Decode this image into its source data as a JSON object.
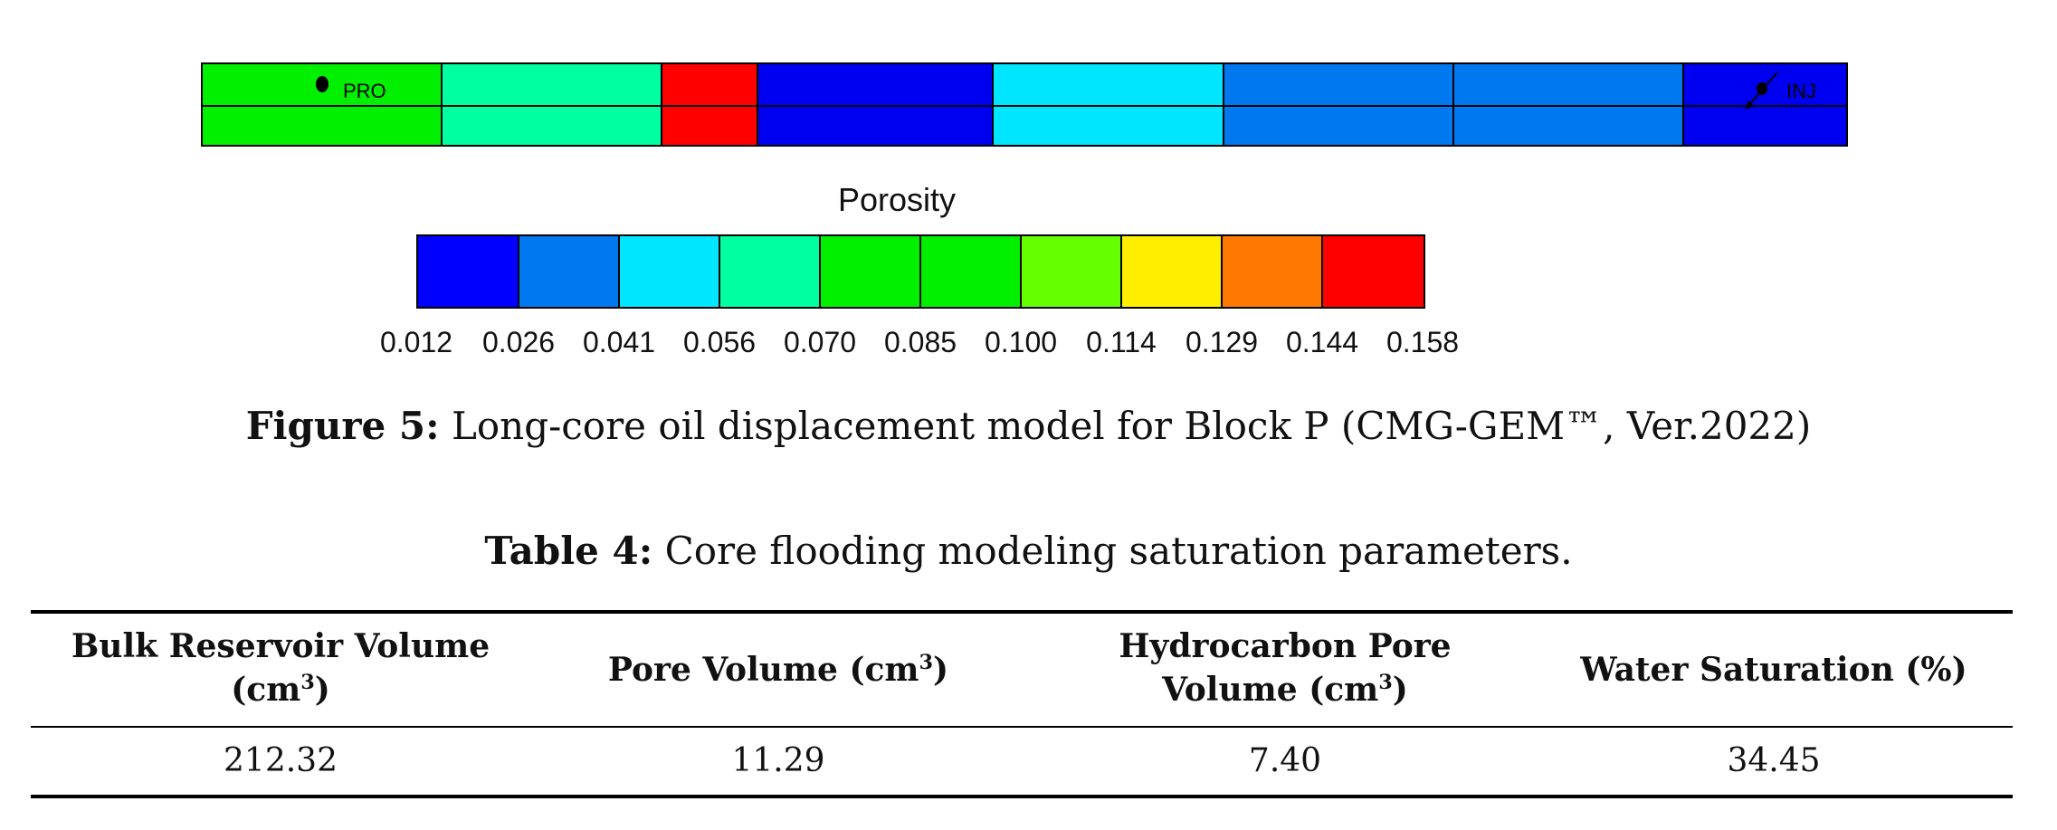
{
  "model": {
    "wells": {
      "producer": "PRO",
      "injector": "INJ"
    },
    "blocks": [
      {
        "color": "#00f000"
      },
      {
        "color": "#00ffa0"
      },
      {
        "color": "#ff0000"
      },
      {
        "color": "#0000f0"
      },
      {
        "color": "#00e6ff"
      },
      {
        "color": "#0078f0"
      },
      {
        "color": "#0078f0"
      },
      {
        "color": "#0000f0"
      }
    ]
  },
  "legend": {
    "title": "Porosity",
    "colors": [
      "#0000ff",
      "#0078f0",
      "#00e6ff",
      "#00ffa0",
      "#00f000",
      "#00f000",
      "#66ff00",
      "#ffee00",
      "#ff7800",
      "#ff0000"
    ],
    "ticks": [
      "0.012",
      "0.026",
      "0.041",
      "0.056",
      "0.070",
      "0.085",
      "0.100",
      "0.114",
      "0.129",
      "0.144",
      "0.158"
    ]
  },
  "figure_caption": {
    "label": "Figure 5:",
    "text": "Long-core oil displacement model for Block P (CMG-GEM™, Ver.2022)"
  },
  "table": {
    "caption_label": "Table 4:",
    "caption_text": "Core flooding modeling saturation parameters.",
    "headers": {
      "bulk_volume_line1": "Bulk Reservoir Volume",
      "bulk_volume_unit": "(cm",
      "pore_volume_label": "Pore Volume (cm",
      "hc_pore_volume_line1": "Hydrocarbon Pore",
      "hc_pore_volume_line2": "Volume (cm",
      "water_saturation": "Water Saturation (%)",
      "superscript": "3",
      "close_paren": ")"
    },
    "row": {
      "bulk_volume": "212.32",
      "pore_volume": "11.29",
      "hc_pore_volume": "7.40",
      "water_saturation": "34.45"
    }
  }
}
